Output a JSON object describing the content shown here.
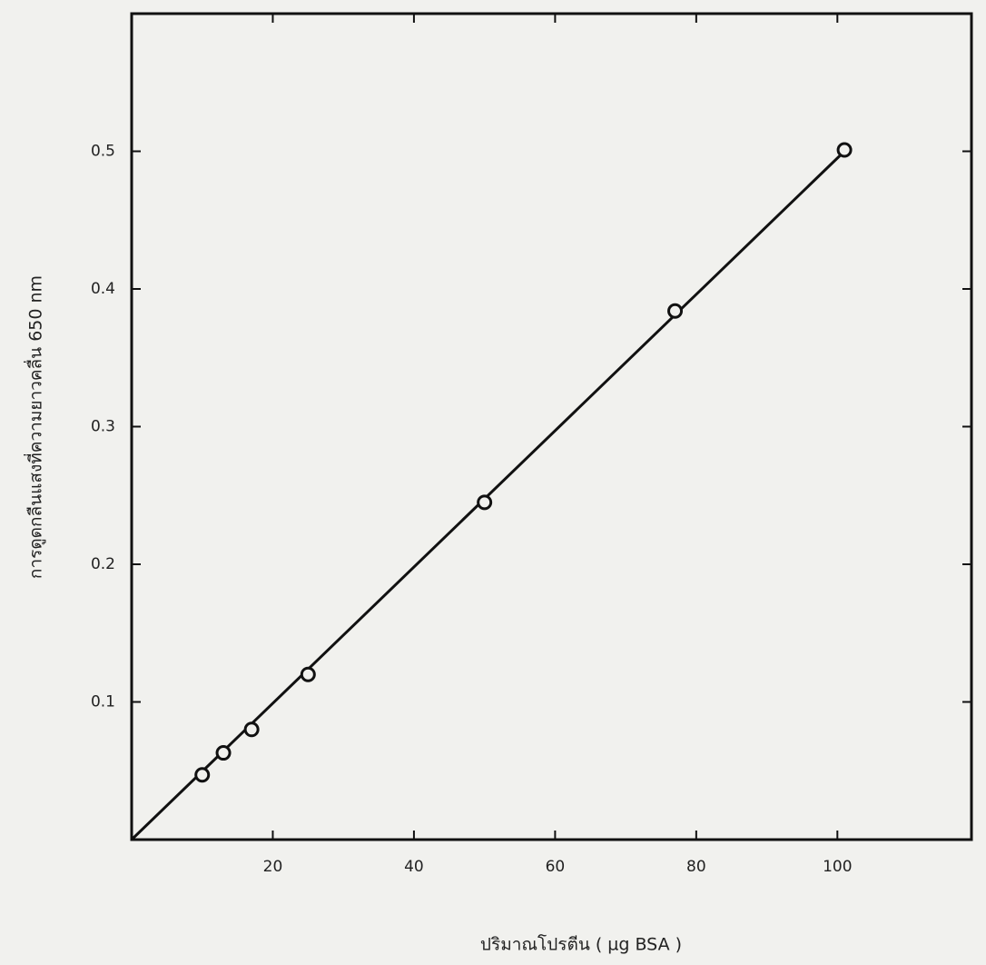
{
  "chart_data": {
    "type": "scatter",
    "xlabel": "ปริมาณโปรตีน ( µg BSA )",
    "ylabel": "การดูดกลืนแสงที่ความยาวคลื่น 650 nm",
    "x": [
      10,
      13,
      17,
      25,
      50,
      77,
      101
    ],
    "values": [
      0.047,
      0.063,
      0.08,
      0.12,
      0.245,
      0.384,
      0.501
    ],
    "fit_line": {
      "x": [
        0,
        101
      ],
      "values": [
        0,
        0.5
      ]
    },
    "color": "#111111",
    "xlim": [
      0,
      119
    ],
    "ylim": [
      0,
      0.6
    ],
    "xticks": [
      20,
      40,
      60,
      80,
      100
    ],
    "yticks": [
      0.1,
      0.2,
      0.3,
      0.4,
      0.5
    ],
    "grid": false
  }
}
